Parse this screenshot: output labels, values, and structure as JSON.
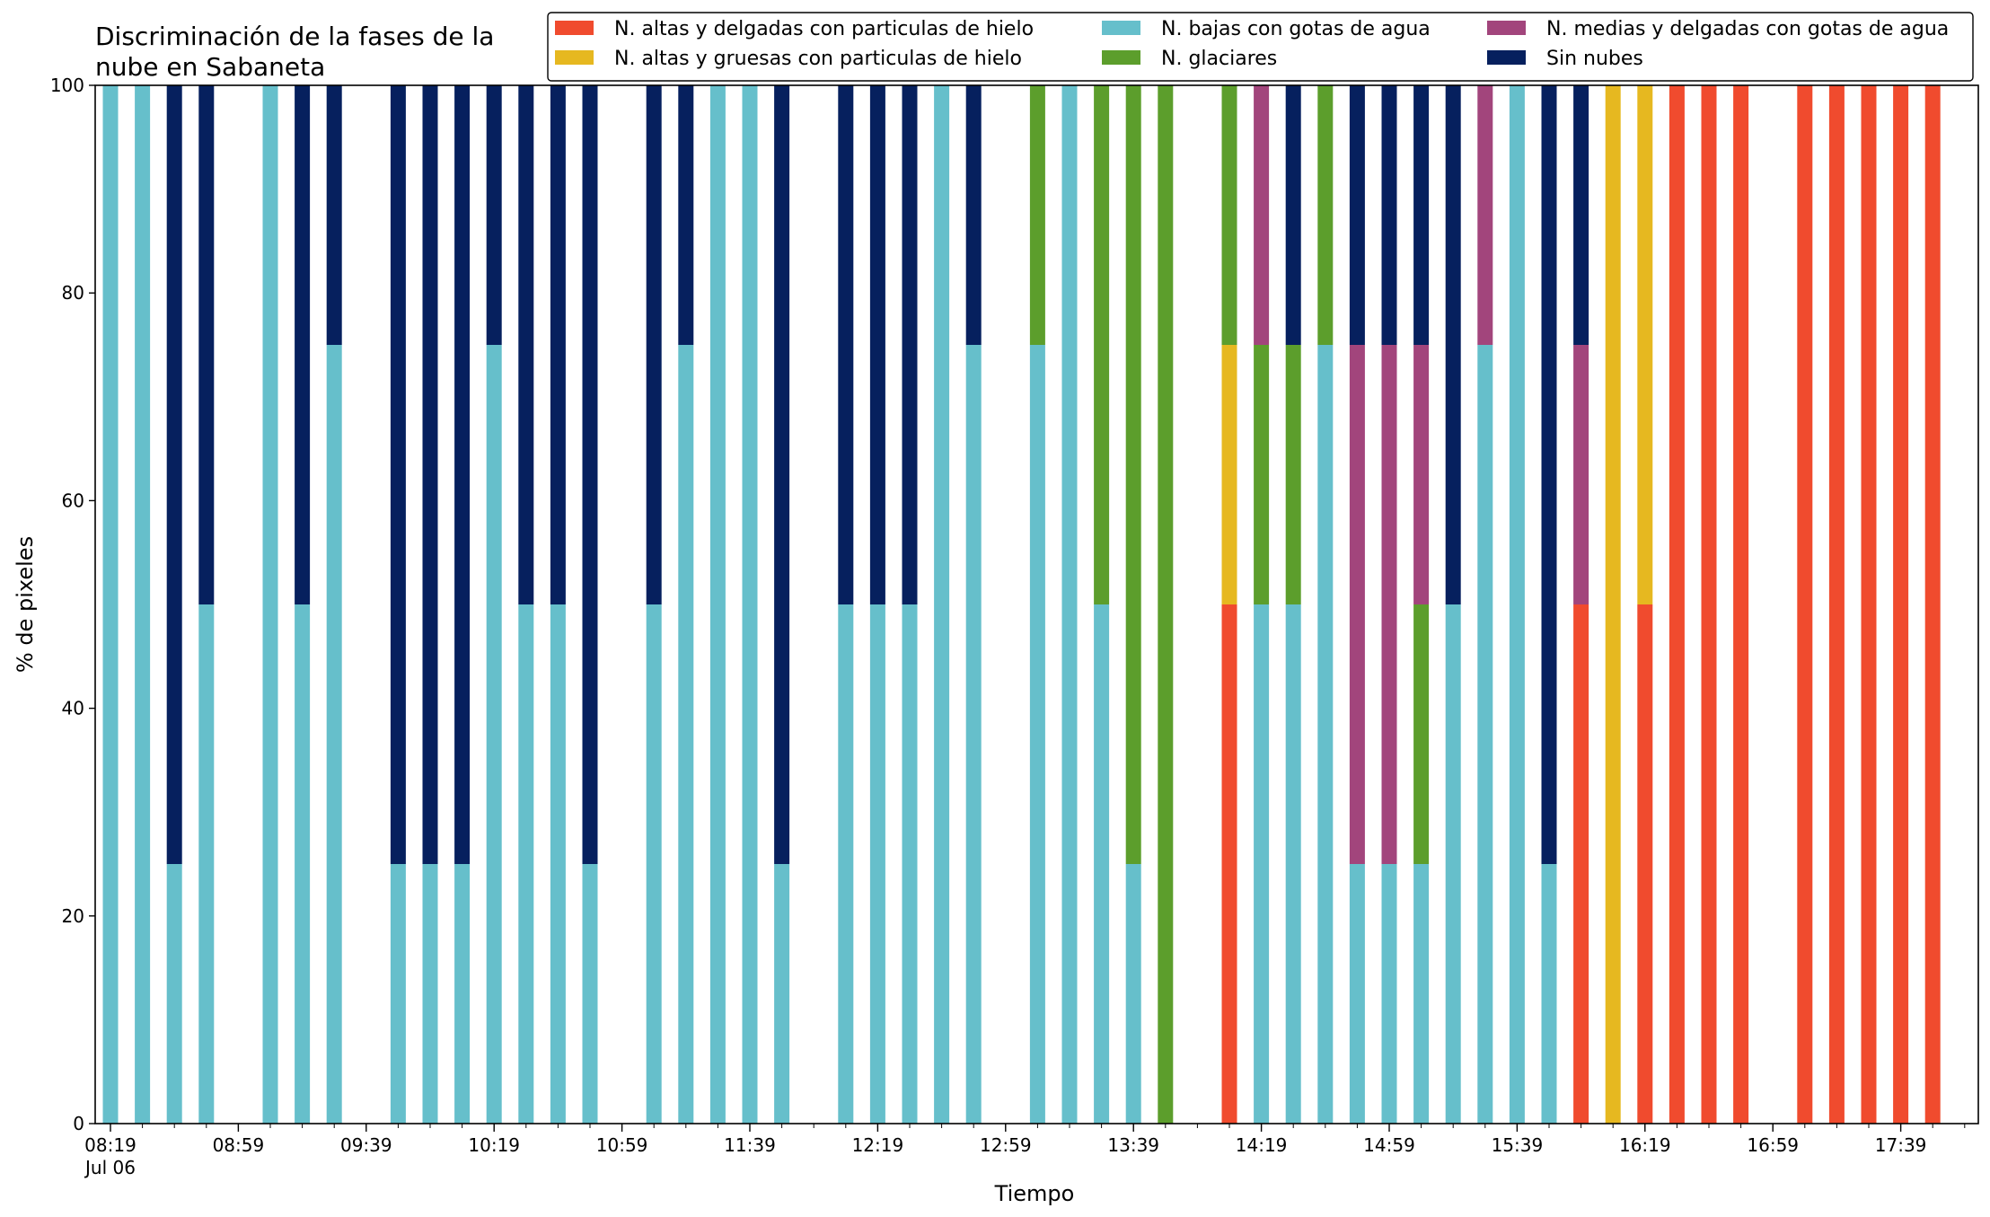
{
  "chart_data": {
    "type": "bar",
    "stacked": true,
    "title_lines": [
      "Discriminación de la fases de la",
      "nube en Sabaneta"
    ],
    "xlabel": "Tiempo",
    "ylabel": "% de pixeles",
    "ylim": [
      0,
      100
    ],
    "yticks": [
      "0",
      "20",
      "40",
      "60",
      "80",
      "100"
    ],
    "x_tick_labels": [
      {
        "time": "08:19",
        "sub": "Jul 06"
      },
      {
        "time": "08:59",
        "sub": ""
      },
      {
        "time": "09:39",
        "sub": ""
      },
      {
        "time": "10:19",
        "sub": ""
      },
      {
        "time": "10:59",
        "sub": ""
      },
      {
        "time": "11:39",
        "sub": ""
      },
      {
        "time": "12:19",
        "sub": ""
      },
      {
        "time": "12:59",
        "sub": ""
      },
      {
        "time": "13:39",
        "sub": ""
      },
      {
        "time": "14:19",
        "sub": ""
      },
      {
        "time": "14:59",
        "sub": ""
      },
      {
        "time": "15:39",
        "sub": ""
      },
      {
        "time": "16:19",
        "sub": ""
      },
      {
        "time": "16:59",
        "sub": ""
      },
      {
        "time": "17:39",
        "sub": ""
      }
    ],
    "legend_position": "top-right",
    "series": [
      {
        "name": "N. altas y delgadas con particulas de hielo",
        "color": "#f04b2e"
      },
      {
        "name": "N. altas y gruesas con particulas de hielo",
        "color": "#e6b820"
      },
      {
        "name": "N. bajas con gotas de agua",
        "color": "#66bfcb"
      },
      {
        "name": "N. glaciares",
        "color": "#5c9e2c"
      },
      {
        "name": "N. medias y delgadas con gotas de agua",
        "color": "#a2457c"
      },
      {
        "name": "Sin nubes",
        "color": "#06205e"
      }
    ],
    "bars": [
      {
        "time": "08:19",
        "segments": [
          {
            "series": 2,
            "value": 100
          }
        ]
      },
      {
        "time": "08:29",
        "segments": [
          {
            "series": 2,
            "value": 100
          }
        ]
      },
      {
        "time": "08:39",
        "segments": [
          {
            "series": 2,
            "value": 25
          },
          {
            "series": 5,
            "value": 75
          }
        ]
      },
      {
        "time": "08:49",
        "segments": [
          {
            "series": 2,
            "value": 50
          },
          {
            "series": 5,
            "value": 50
          }
        ]
      },
      {
        "time": "09:09",
        "segments": [
          {
            "series": 2,
            "value": 100
          }
        ]
      },
      {
        "time": "09:19",
        "segments": [
          {
            "series": 2,
            "value": 50
          },
          {
            "series": 5,
            "value": 50
          }
        ]
      },
      {
        "time": "09:29",
        "segments": [
          {
            "series": 2,
            "value": 75
          },
          {
            "series": 5,
            "value": 25
          }
        ]
      },
      {
        "time": "09:49",
        "segments": [
          {
            "series": 2,
            "value": 25
          },
          {
            "series": 5,
            "value": 75
          }
        ]
      },
      {
        "time": "09:59",
        "segments": [
          {
            "series": 2,
            "value": 25
          },
          {
            "series": 5,
            "value": 75
          }
        ]
      },
      {
        "time": "10:09",
        "segments": [
          {
            "series": 2,
            "value": 25
          },
          {
            "series": 5,
            "value": 75
          }
        ]
      },
      {
        "time": "10:19",
        "segments": [
          {
            "series": 2,
            "value": 75
          },
          {
            "series": 5,
            "value": 25
          }
        ]
      },
      {
        "time": "10:29",
        "segments": [
          {
            "series": 2,
            "value": 50
          },
          {
            "series": 5,
            "value": 50
          }
        ]
      },
      {
        "time": "10:39",
        "segments": [
          {
            "series": 2,
            "value": 50
          },
          {
            "series": 5,
            "value": 50
          }
        ]
      },
      {
        "time": "10:49",
        "segments": [
          {
            "series": 2,
            "value": 25
          },
          {
            "series": 5,
            "value": 75
          }
        ]
      },
      {
        "time": "11:09",
        "segments": [
          {
            "series": 2,
            "value": 50
          },
          {
            "series": 5,
            "value": 50
          }
        ]
      },
      {
        "time": "11:19",
        "segments": [
          {
            "series": 2,
            "value": 75
          },
          {
            "series": 5,
            "value": 25
          }
        ]
      },
      {
        "time": "11:29",
        "segments": [
          {
            "series": 2,
            "value": 100
          }
        ]
      },
      {
        "time": "11:39",
        "segments": [
          {
            "series": 2,
            "value": 100
          }
        ]
      },
      {
        "time": "11:49",
        "segments": [
          {
            "series": 2,
            "value": 25
          },
          {
            "series": 5,
            "value": 75
          }
        ]
      },
      {
        "time": "12:09",
        "segments": [
          {
            "series": 2,
            "value": 50
          },
          {
            "series": 5,
            "value": 50
          }
        ]
      },
      {
        "time": "12:19",
        "segments": [
          {
            "series": 2,
            "value": 50
          },
          {
            "series": 5,
            "value": 50
          }
        ]
      },
      {
        "time": "12:29",
        "segments": [
          {
            "series": 2,
            "value": 50
          },
          {
            "series": 5,
            "value": 50
          }
        ]
      },
      {
        "time": "12:39",
        "segments": [
          {
            "series": 2,
            "value": 100
          }
        ]
      },
      {
        "time": "12:49",
        "segments": [
          {
            "series": 2,
            "value": 75
          },
          {
            "series": 5,
            "value": 25
          }
        ]
      },
      {
        "time": "13:09",
        "segments": [
          {
            "series": 2,
            "value": 75
          },
          {
            "series": 3,
            "value": 25
          }
        ]
      },
      {
        "time": "13:19",
        "segments": [
          {
            "series": 2,
            "value": 100
          }
        ]
      },
      {
        "time": "13:29",
        "segments": [
          {
            "series": 2,
            "value": 50
          },
          {
            "series": 3,
            "value": 50
          }
        ]
      },
      {
        "time": "13:39",
        "segments": [
          {
            "series": 2,
            "value": 25
          },
          {
            "series": 3,
            "value": 75
          }
        ]
      },
      {
        "time": "13:49",
        "segments": [
          {
            "series": 3,
            "value": 100
          }
        ]
      },
      {
        "time": "14:09",
        "segments": [
          {
            "series": 0,
            "value": 50
          },
          {
            "series": 1,
            "value": 25
          },
          {
            "series": 3,
            "value": 25
          }
        ]
      },
      {
        "time": "14:19",
        "segments": [
          {
            "series": 2,
            "value": 50
          },
          {
            "series": 3,
            "value": 25
          },
          {
            "series": 4,
            "value": 25
          }
        ]
      },
      {
        "time": "14:29",
        "segments": [
          {
            "series": 2,
            "value": 50
          },
          {
            "series": 3,
            "value": 25
          },
          {
            "series": 5,
            "value": 25
          }
        ]
      },
      {
        "time": "14:39",
        "segments": [
          {
            "series": 2,
            "value": 75
          },
          {
            "series": 3,
            "value": 25
          }
        ]
      },
      {
        "time": "14:49",
        "segments": [
          {
            "series": 2,
            "value": 25
          },
          {
            "series": 4,
            "value": 50
          },
          {
            "series": 5,
            "value": 25
          }
        ]
      },
      {
        "time": "14:59",
        "segments": [
          {
            "series": 2,
            "value": 25
          },
          {
            "series": 4,
            "value": 50
          },
          {
            "series": 5,
            "value": 25
          }
        ]
      },
      {
        "time": "15:09",
        "segments": [
          {
            "series": 2,
            "value": 25
          },
          {
            "series": 3,
            "value": 25
          },
          {
            "series": 4,
            "value": 25
          },
          {
            "series": 5,
            "value": 25
          }
        ]
      },
      {
        "time": "15:19",
        "segments": [
          {
            "series": 2,
            "value": 50
          },
          {
            "series": 5,
            "value": 50
          }
        ]
      },
      {
        "time": "15:29",
        "segments": [
          {
            "series": 2,
            "value": 75
          },
          {
            "series": 4,
            "value": 25
          }
        ]
      },
      {
        "time": "15:39",
        "segments": [
          {
            "series": 2,
            "value": 100
          }
        ]
      },
      {
        "time": "15:49",
        "segments": [
          {
            "series": 2,
            "value": 25
          },
          {
            "series": 5,
            "value": 75
          }
        ]
      },
      {
        "time": "15:59",
        "segments": [
          {
            "series": 0,
            "value": 50
          },
          {
            "series": 4,
            "value": 25
          },
          {
            "series": 5,
            "value": 25
          }
        ]
      },
      {
        "time": "16:09",
        "segments": [
          {
            "series": 1,
            "value": 100
          }
        ]
      },
      {
        "time": "16:19",
        "segments": [
          {
            "series": 0,
            "value": 50
          },
          {
            "series": 1,
            "value": 50
          }
        ]
      },
      {
        "time": "16:29",
        "segments": [
          {
            "series": 0,
            "value": 100
          }
        ]
      },
      {
        "time": "16:39",
        "segments": [
          {
            "series": 0,
            "value": 100
          }
        ]
      },
      {
        "time": "16:49",
        "segments": [
          {
            "series": 0,
            "value": 100
          }
        ]
      },
      {
        "time": "17:09",
        "segments": [
          {
            "series": 0,
            "value": 100
          }
        ]
      },
      {
        "time": "17:19",
        "segments": [
          {
            "series": 0,
            "value": 100
          }
        ]
      },
      {
        "time": "17:29",
        "segments": [
          {
            "series": 0,
            "value": 100
          }
        ]
      },
      {
        "time": "17:39",
        "segments": [
          {
            "series": 0,
            "value": 100
          }
        ]
      },
      {
        "time": "17:49",
        "segments": [
          {
            "series": 0,
            "value": 100
          }
        ]
      }
    ]
  }
}
